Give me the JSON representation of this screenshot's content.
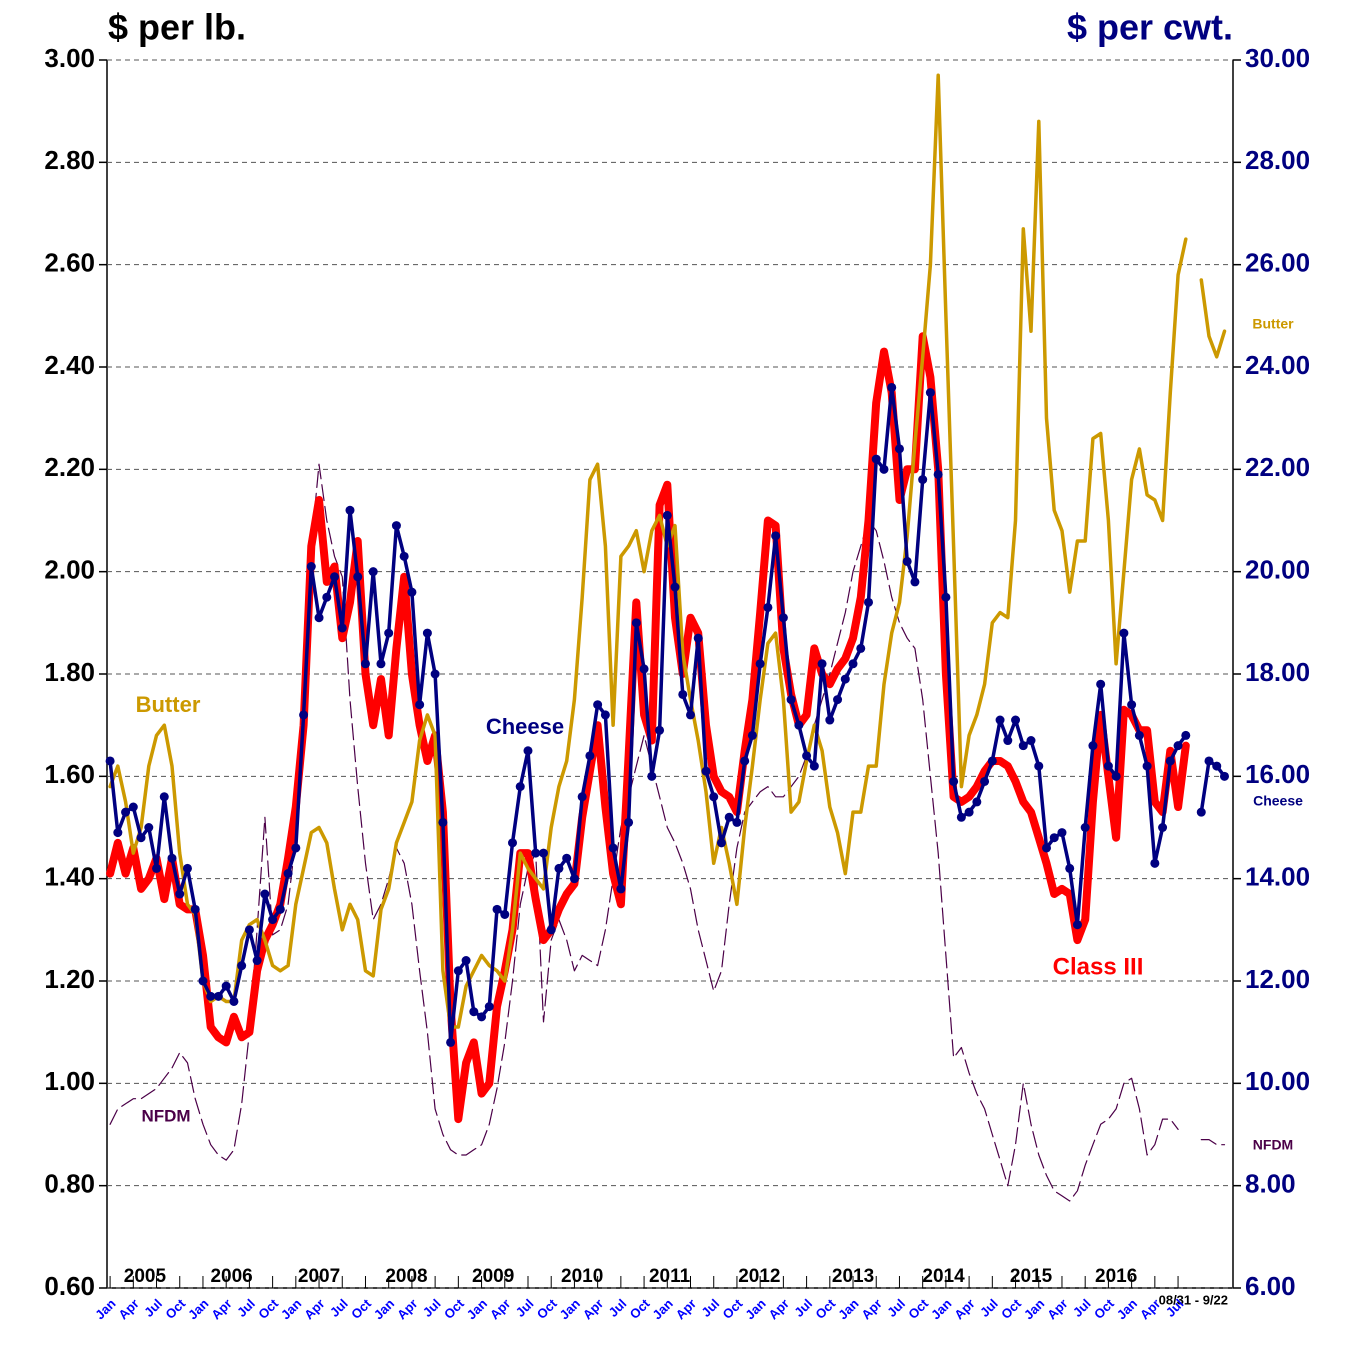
{
  "chart_data": {
    "type": "line",
    "y_label": "$ per lb.",
    "y2_label": "$ per cwt.",
    "x_note": "08/31 - 9/22",
    "xlim": [
      -0.4,
      145.1
    ],
    "xticks": [
      {
        "value": 0,
        "label": "Jan"
      },
      {
        "value": 3,
        "label": "Apr"
      },
      {
        "value": 6,
        "label": "Jul"
      },
      {
        "value": 9,
        "label": "Oct"
      },
      {
        "value": 12,
        "label": "Jan"
      },
      {
        "value": 15,
        "label": "Apr"
      },
      {
        "value": 18,
        "label": "Jul"
      },
      {
        "value": 21,
        "label": "Oct"
      },
      {
        "value": 24,
        "label": "Jan"
      },
      {
        "value": 27,
        "label": "Apr"
      },
      {
        "value": 30,
        "label": "Jul"
      },
      {
        "value": 33,
        "label": "Oct"
      },
      {
        "value": 36,
        "label": "Jan"
      },
      {
        "value": 39,
        "label": "Apr"
      },
      {
        "value": 42,
        "label": "Jul"
      },
      {
        "value": 45,
        "label": "Oct"
      },
      {
        "value": 48,
        "label": "Jan"
      },
      {
        "value": 51,
        "label": "Apr"
      },
      {
        "value": 54,
        "label": "Jul"
      },
      {
        "value": 57,
        "label": "Oct"
      },
      {
        "value": 60,
        "label": "Jan"
      },
      {
        "value": 63,
        "label": "Apr"
      },
      {
        "value": 66,
        "label": "Jul"
      },
      {
        "value": 69,
        "label": "Oct"
      },
      {
        "value": 72,
        "label": "Jan"
      },
      {
        "value": 75,
        "label": "Apr"
      },
      {
        "value": 78,
        "label": "Jul"
      },
      {
        "value": 81,
        "label": "Oct"
      },
      {
        "value": 84,
        "label": "Jan"
      },
      {
        "value": 87,
        "label": "Apr"
      },
      {
        "value": 90,
        "label": "Jul"
      },
      {
        "value": 93,
        "label": "Oct"
      },
      {
        "value": 96,
        "label": "Jan"
      },
      {
        "value": 99,
        "label": "Apr"
      },
      {
        "value": 102,
        "label": "Jul"
      },
      {
        "value": 105,
        "label": "Oct"
      },
      {
        "value": 108,
        "label": "Jan"
      },
      {
        "value": 111,
        "label": "Apr"
      },
      {
        "value": 114,
        "label": "Jul"
      },
      {
        "value": 117,
        "label": "Oct"
      },
      {
        "value": 120,
        "label": "Jan"
      },
      {
        "value": 123,
        "label": "Apr"
      },
      {
        "value": 126,
        "label": "Jul"
      },
      {
        "value": 129,
        "label": "Oct"
      },
      {
        "value": 132,
        "label": "Jan"
      },
      {
        "value": 135,
        "label": "Apr"
      },
      {
        "value": 138,
        "label": "Jul"
      }
    ],
    "year_labels": [
      {
        "value": 4.5,
        "label": "2005"
      },
      {
        "value": 15.7,
        "label": "2006"
      },
      {
        "value": 27,
        "label": "2007"
      },
      {
        "value": 38.3,
        "label": "2008"
      },
      {
        "value": 49.5,
        "label": "2009"
      },
      {
        "value": 61,
        "label": "2010"
      },
      {
        "value": 72.3,
        "label": "2011"
      },
      {
        "value": 83.9,
        "label": "2012"
      },
      {
        "value": 96,
        "label": "2013"
      },
      {
        "value": 107.7,
        "label": "2014"
      },
      {
        "value": 119,
        "label": "2015"
      },
      {
        "value": 130,
        "label": "2016"
      }
    ],
    "ylim": [
      0.6,
      3.0
    ],
    "yticks": [
      {
        "value": 0.6,
        "label": "0.60"
      },
      {
        "value": 0.8,
        "label": "0.80"
      },
      {
        "value": 1.0,
        "label": "1.00"
      },
      {
        "value": 1.2,
        "label": "1.20"
      },
      {
        "value": 1.4,
        "label": "1.40"
      },
      {
        "value": 1.6,
        "label": "1.60"
      },
      {
        "value": 1.8,
        "label": "1.80"
      },
      {
        "value": 2.0,
        "label": "2.00"
      },
      {
        "value": 2.2,
        "label": "2.20"
      },
      {
        "value": 2.4,
        "label": "2.40"
      },
      {
        "value": 2.6,
        "label": "2.60"
      },
      {
        "value": 2.8,
        "label": "2.80"
      },
      {
        "value": 3.0,
        "label": "3.00"
      }
    ],
    "y2lim": [
      6,
      30
    ],
    "y2ticks": [
      {
        "value": 6,
        "label": "6.00"
      },
      {
        "value": 8,
        "label": "8.00"
      },
      {
        "value": 10,
        "label": "10.00"
      },
      {
        "value": 12,
        "label": "12.00"
      },
      {
        "value": 14,
        "label": "14.00"
      },
      {
        "value": 16,
        "label": "16.00"
      },
      {
        "value": 18,
        "label": "18.00"
      },
      {
        "value": 20,
        "label": "20.00"
      },
      {
        "value": 22,
        "label": "22.00"
      },
      {
        "value": 24,
        "label": "24.00"
      },
      {
        "value": 26,
        "label": "26.00"
      },
      {
        "value": 28,
        "label": "28.00"
      },
      {
        "value": 30,
        "label": "30.00"
      }
    ],
    "grid": true,
    "series": [
      {
        "name": "NFDM",
        "color": "#4b0048",
        "dashed": true,
        "values": [
          0.92,
          0.95,
          0.96,
          0.97,
          0.97,
          0.98,
          0.99,
          1.01,
          1.03,
          1.06,
          1.04,
          0.97,
          0.92,
          0.88,
          0.86,
          0.85,
          0.87,
          0.96,
          1.1,
          1.3,
          1.52,
          1.29,
          1.3,
          1.35,
          1.48,
          1.75,
          2.05,
          2.21,
          2.1,
          2.03,
          1.99,
          1.75,
          1.58,
          1.43,
          1.32,
          1.35,
          1.4,
          1.46,
          1.43,
          1.35,
          1.22,
          1.1,
          0.95,
          0.9,
          0.87,
          0.86,
          0.86,
          0.87,
          0.88,
          0.92,
          0.99,
          1.08,
          1.2,
          1.35,
          1.42,
          1.45,
          1.12,
          1.28,
          1.32,
          1.28,
          1.22,
          1.25,
          1.24,
          1.23,
          1.3,
          1.4,
          1.5,
          1.56,
          1.62,
          1.68,
          1.62,
          1.56,
          1.5,
          1.47,
          1.43,
          1.38,
          1.3,
          1.24,
          1.18,
          1.22,
          1.35,
          1.46,
          1.53,
          1.55,
          1.57,
          1.58,
          1.56,
          1.56,
          1.58,
          1.6,
          1.64,
          1.7,
          1.75,
          1.8,
          1.86,
          1.92,
          2.0,
          2.05,
          2.1,
          2.08,
          2.02,
          1.95,
          1.9,
          1.87,
          1.85,
          1.75,
          1.6,
          1.45,
          1.25,
          1.05,
          1.07,
          1.02,
          0.98,
          0.95,
          0.9,
          0.85,
          0.8,
          0.88,
          1.0,
          0.92,
          0.86,
          0.82,
          0.79,
          0.78,
          0.77,
          0.79,
          0.84,
          0.88,
          0.92,
          0.93,
          0.95,
          1.0,
          1.01,
          0.95,
          0.86,
          0.88,
          0.93,
          0.93,
          0.91,
          null,
          null,
          0.89,
          0.89,
          0.88,
          0.88
        ]
      },
      {
        "name": "Class III",
        "color": "#ff0000",
        "axis": "y2",
        "width": 8,
        "values": [
          14.1,
          14.7,
          14.1,
          14.6,
          13.8,
          14.0,
          14.4,
          13.6,
          14.4,
          13.5,
          13.4,
          13.4,
          12.5,
          11.1,
          10.9,
          10.8,
          11.3,
          10.9,
          11.0,
          12.2,
          12.8,
          13.1,
          13.5,
          14.4,
          15.4,
          17.0,
          20.5,
          21.4,
          19.8,
          20.1,
          18.7,
          19.4,
          20.6,
          18.0,
          17.0,
          17.9,
          16.8,
          18.5,
          19.9,
          18.0,
          17.0,
          16.3,
          16.8,
          15.3,
          11.5,
          9.3,
          10.4,
          10.8,
          9.8,
          10.0,
          11.5,
          12.2,
          13.0,
          14.5,
          14.5,
          13.6,
          12.8,
          13.0,
          13.4,
          13.7,
          13.9,
          15.2,
          16.1,
          17.0,
          15.4,
          14.1,
          13.5,
          16.4,
          19.4,
          17.2,
          16.7,
          21.3,
          21.7,
          19.1,
          18.0,
          19.1,
          18.8,
          17.0,
          16.0,
          15.7,
          15.6,
          15.3,
          16.5,
          17.5,
          19.2,
          21.0,
          20.9,
          18.5,
          17.6,
          17.0,
          17.2,
          18.5,
          18.0,
          17.8,
          18.1,
          18.3,
          18.7,
          19.5,
          21.0,
          23.3,
          24.3,
          23.5,
          21.4,
          22.0,
          22.0,
          24.6,
          23.8,
          22.0,
          18.0,
          15.6,
          15.5,
          15.6,
          15.8,
          16.1,
          16.3,
          16.3,
          16.2,
          15.9,
          15.5,
          15.3,
          14.8,
          14.3,
          13.7,
          13.8,
          13.7,
          12.8,
          13.2,
          15.5,
          17.2,
          16.0,
          14.8,
          17.3,
          17.2,
          16.9,
          16.9,
          15.5,
          15.3,
          16.5,
          15.4,
          16.6,
          null,
          null,
          null,
          null,
          null
        ]
      },
      {
        "name": "Butter",
        "color": "#cc9900",
        "width": 3.5,
        "values": [
          1.58,
          1.62,
          1.55,
          1.45,
          1.5,
          1.62,
          1.68,
          1.7,
          1.62,
          1.45,
          1.35,
          1.33,
          1.2,
          1.16,
          1.17,
          1.16,
          1.16,
          1.28,
          1.31,
          1.32,
          1.28,
          1.23,
          1.22,
          1.23,
          1.35,
          1.42,
          1.49,
          1.5,
          1.47,
          1.38,
          1.3,
          1.35,
          1.32,
          1.22,
          1.21,
          1.34,
          1.38,
          1.47,
          1.51,
          1.55,
          1.67,
          1.72,
          1.68,
          1.22,
          1.11,
          1.11,
          1.19,
          1.22,
          1.25,
          1.23,
          1.22,
          1.2,
          1.3,
          1.45,
          1.42,
          1.4,
          1.38,
          1.5,
          1.58,
          1.63,
          1.75,
          1.95,
          2.18,
          2.21,
          2.05,
          1.7,
          2.03,
          2.05,
          2.08,
          2.0,
          2.08,
          2.11,
          2.05,
          2.09,
          1.84,
          1.75,
          1.67,
          1.57,
          1.43,
          1.5,
          1.43,
          1.35,
          1.5,
          1.62,
          1.75,
          1.86,
          1.88,
          1.75,
          1.53,
          1.55,
          1.63,
          1.7,
          1.65,
          1.54,
          1.49,
          1.41,
          1.53,
          1.53,
          1.62,
          1.62,
          1.78,
          1.88,
          1.94,
          2.07,
          2.25,
          2.42,
          2.6,
          2.97,
          2.5,
          2.05,
          1.58,
          1.68,
          1.72,
          1.78,
          1.9,
          1.92,
          1.91,
          2.1,
          2.67,
          2.47,
          2.88,
          2.3,
          2.12,
          2.08,
          1.96,
          2.06,
          2.06,
          2.26,
          2.27,
          2.1,
          1.82,
          2.0,
          2.18,
          2.24,
          2.15,
          2.14,
          2.1,
          2.35,
          2.58,
          2.65,
          null,
          2.57,
          2.46,
          2.42,
          2.47
        ]
      },
      {
        "name": "Cheese",
        "color": "#000080",
        "width": 3.5,
        "markers": true,
        "values": [
          1.63,
          1.49,
          1.53,
          1.54,
          1.48,
          1.5,
          1.42,
          1.56,
          1.44,
          1.37,
          1.42,
          1.34,
          1.2,
          1.17,
          1.17,
          1.19,
          1.16,
          1.23,
          1.3,
          1.24,
          1.37,
          1.32,
          1.34,
          1.41,
          1.46,
          1.72,
          2.01,
          1.91,
          1.95,
          1.99,
          1.89,
          2.12,
          1.99,
          1.82,
          2.0,
          1.82,
          1.88,
          2.09,
          2.03,
          1.96,
          1.74,
          1.88,
          1.8,
          1.51,
          1.08,
          1.22,
          1.24,
          1.14,
          1.13,
          1.15,
          1.34,
          1.33,
          1.47,
          1.58,
          1.65,
          1.45,
          1.45,
          1.3,
          1.42,
          1.44,
          1.4,
          1.56,
          1.64,
          1.74,
          1.72,
          1.46,
          1.38,
          1.51,
          1.9,
          1.81,
          1.6,
          1.69,
          2.11,
          1.97,
          1.76,
          1.72,
          1.87,
          1.61,
          1.56,
          1.47,
          1.52,
          1.51,
          1.63,
          1.68,
          1.82,
          1.93,
          2.07,
          1.91,
          1.75,
          1.7,
          1.64,
          1.62,
          1.82,
          1.71,
          1.75,
          1.79,
          1.82,
          1.85,
          1.94,
          2.22,
          2.2,
          2.36,
          2.24,
          2.02,
          1.98,
          2.18,
          2.35,
          2.19,
          1.95,
          1.59,
          1.52,
          1.53,
          1.55,
          1.59,
          1.63,
          1.71,
          1.67,
          1.71,
          1.66,
          1.67,
          1.62,
          1.46,
          1.48,
          1.49,
          1.42,
          1.31,
          1.5,
          1.66,
          1.78,
          1.62,
          1.6,
          1.88,
          1.74,
          1.68,
          1.62,
          1.43,
          1.5,
          1.63,
          1.66,
          1.68,
          null,
          1.53,
          1.63,
          1.62,
          1.6
        ]
      }
    ]
  }
}
